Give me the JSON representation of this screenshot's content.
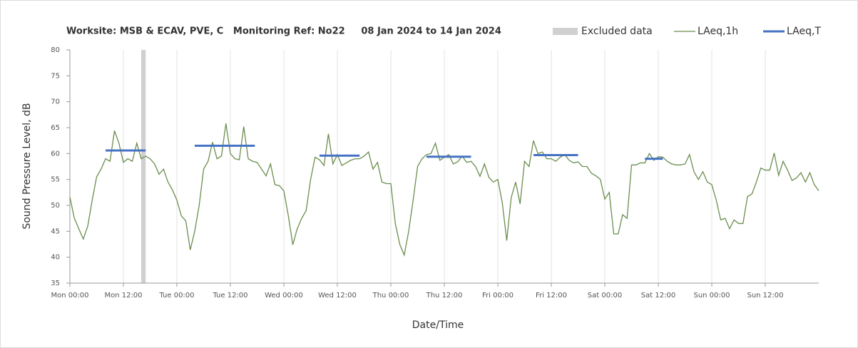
{
  "chart_data": {
    "type": "line",
    "title": "Worksite: MSB & ECAV, PVE, C   Monitoring Ref: No22     08 Jan 2024 to 14 Jan 2024",
    "x_label": "Date/Time",
    "y_label": "Sound Pressure Level, dB",
    "xlim": [
      0,
      168
    ],
    "xticks": [
      {
        "value": 0,
        "label": "Mon 00:00"
      },
      {
        "value": 12,
        "label": "Mon 12:00"
      },
      {
        "value": 24,
        "label": "Tue 00:00"
      },
      {
        "value": 36,
        "label": "Tue 12:00"
      },
      {
        "value": 48,
        "label": "Wed 00:00"
      },
      {
        "value": 60,
        "label": "Wed 12:00"
      },
      {
        "value": 72,
        "label": "Thu 00:00"
      },
      {
        "value": 84,
        "label": "Thu 12:00"
      },
      {
        "value": 96,
        "label": "Fri 00:00"
      },
      {
        "value": 108,
        "label": "Fri 12:00"
      },
      {
        "value": 120,
        "label": "Sat 00:00"
      },
      {
        "value": 132,
        "label": "Sat 12:00"
      },
      {
        "value": 144,
        "label": "Sun 00:00"
      },
      {
        "value": 156,
        "label": "Sun 12:00"
      }
    ],
    "ylim": [
      35,
      80
    ],
    "yticks": [
      35,
      40,
      45,
      50,
      55,
      60,
      65,
      70,
      75,
      80
    ],
    "grid": "x",
    "legend": "top-right",
    "excluded": {
      "name": "Excluded data",
      "color": "#d0d0d0",
      "x": [
        16,
        17
      ]
    },
    "x": [
      0,
      1,
      2,
      3,
      4,
      5,
      6,
      7,
      8,
      9,
      10,
      11,
      12,
      13,
      14,
      15,
      16,
      17,
      18,
      19,
      20,
      21,
      22,
      23,
      24,
      25,
      26,
      27,
      28,
      29,
      30,
      31,
      32,
      33,
      34,
      35,
      36,
      37,
      38,
      39,
      40,
      41,
      42,
      43,
      44,
      45,
      46,
      47,
      48,
      49,
      50,
      51,
      52,
      53,
      54,
      55,
      56,
      57,
      58,
      59,
      60,
      61,
      62,
      63,
      64,
      65,
      66,
      67,
      68,
      69,
      70,
      71,
      72,
      73,
      74,
      75,
      76,
      77,
      78,
      79,
      80,
      81,
      82,
      83,
      84,
      85,
      86,
      87,
      88,
      89,
      90,
      91,
      92,
      93,
      94,
      95,
      96,
      97,
      98,
      99,
      100,
      101,
      102,
      103,
      104,
      105,
      106,
      107,
      108,
      109,
      110,
      111,
      112,
      113,
      114,
      115,
      116,
      117,
      118,
      119,
      120,
      121,
      122,
      123,
      124,
      125,
      126,
      127,
      128,
      129,
      130,
      131,
      132,
      133,
      134,
      135,
      136,
      137,
      138,
      139,
      140,
      141,
      142,
      143,
      144,
      145,
      146,
      147,
      148,
      149,
      150,
      151,
      152,
      153,
      154,
      155,
      156,
      157,
      158,
      159,
      160,
      161,
      162,
      163,
      164,
      165,
      166,
      167,
      168
    ],
    "series": [
      {
        "name": "LAeq,1h",
        "color": "#6b8e4e",
        "values": [
          51.6,
          47.5,
          45.5,
          43.5,
          46,
          51,
          55.5,
          57,
          59,
          58.5,
          64.4,
          62,
          58.3,
          59,
          58.5,
          62,
          59,
          59.5,
          59,
          58,
          56,
          57,
          54.5,
          53,
          51,
          48,
          47,
          41.4,
          45,
          50,
          57,
          58.5,
          62.2,
          59,
          59.5,
          65.8,
          60,
          59,
          58.8,
          65.2,
          59,
          58.5,
          58.3,
          57,
          55.7,
          58,
          54,
          53.8,
          52.8,
          48,
          42.4,
          45.5,
          47.5,
          49,
          55,
          59.3,
          58.8,
          57.7,
          63.8,
          58,
          59.8,
          57.7,
          58.2,
          58.7,
          59,
          59,
          59.5,
          60.3,
          57,
          58.3,
          54.5,
          54.2,
          54.2,
          46.5,
          42.5,
          40.4,
          45,
          51,
          57.5,
          59,
          59.8,
          60,
          62,
          58.7,
          59.3,
          59.8,
          58,
          58.4,
          59.5,
          58.3,
          58.5,
          57.5,
          55.6,
          58,
          55.4,
          54.5,
          55,
          50.5,
          43.2,
          51.5,
          54.5,
          50.3,
          58.5,
          57.5,
          62.5,
          60,
          60.3,
          59,
          59,
          58.5,
          59.3,
          59.8,
          58.7,
          58.2,
          58.4,
          57.5,
          57.5,
          56.2,
          55.7,
          55,
          51.2,
          52.5,
          44.5,
          44.5,
          48.2,
          47.5,
          57.8,
          57.8,
          58.2,
          58.2,
          60,
          58.7,
          59.4,
          59.3,
          58.5,
          58,
          57.8,
          57.8,
          58,
          59.8,
          56.5,
          55,
          56.5,
          54.5,
          54,
          51,
          47.2,
          47.5,
          45.5,
          47.2,
          46.5,
          46.5,
          51.7,
          52.2,
          54.5,
          57.2,
          56.8,
          56.8,
          60.1,
          55.8,
          58.5,
          56.8,
          54.8,
          55.3,
          56.3,
          54.5,
          56.3,
          54,
          52.8
        ]
      },
      {
        "name": "LAeq,T",
        "color": "#4472c4",
        "segments": [
          {
            "x": [
              8,
              17
            ],
            "value": 60.6
          },
          {
            "x": [
              28,
              41.5
            ],
            "value": 61.5
          },
          {
            "x": [
              56,
              65
            ],
            "value": 59.6
          },
          {
            "x": [
              80,
              90
            ],
            "value": 59.4
          },
          {
            "x": [
              104,
              114
            ],
            "value": 59.7
          },
          {
            "x": [
              129,
              133
            ],
            "value": 59.0
          }
        ]
      }
    ]
  }
}
